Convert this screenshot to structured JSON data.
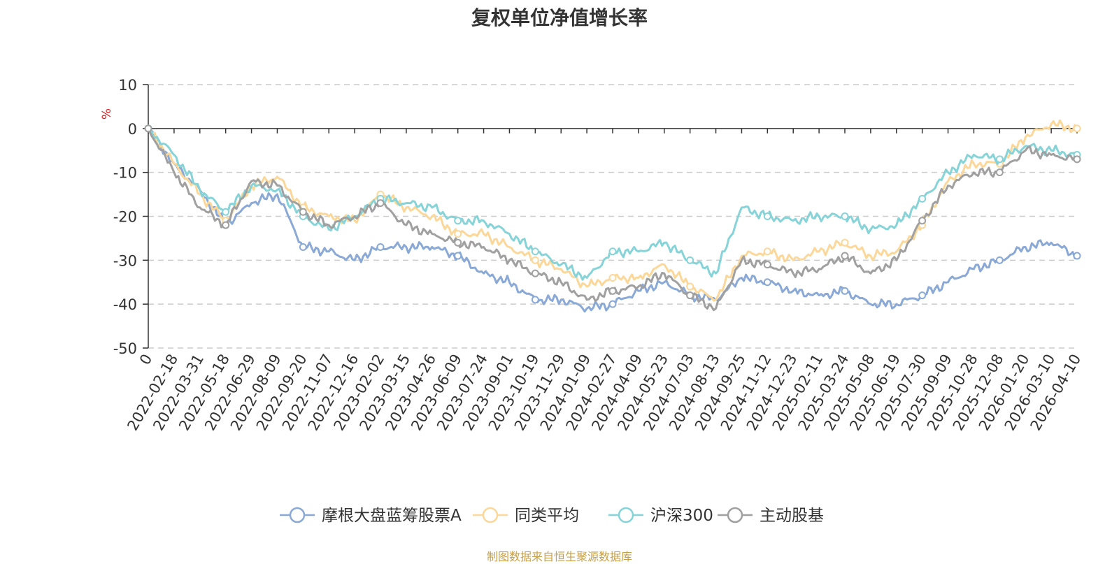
{
  "chart_data": {
    "type": "line",
    "title": "复权单位净值增长率",
    "ylabel": "%",
    "ylim": [
      -50,
      10
    ],
    "yticks": [
      10,
      0,
      -10,
      -20,
      -30,
      -40,
      -50
    ],
    "y_tick_labels": [
      "10",
      "0",
      "-10",
      "-20",
      "-30",
      "-40",
      "-50"
    ],
    "categories": [
      "0",
      "2022-02-18",
      "2022-03-31",
      "2022-05-18",
      "2022-06-29",
      "2022-08-09",
      "2022-09-20",
      "2022-11-07",
      "2022-12-16",
      "2023-02-02",
      "2023-03-15",
      "2023-04-26",
      "2023-06-09",
      "2023-07-24",
      "2023-09-01",
      "2023-10-19",
      "2023-11-29",
      "2024-01-09",
      "2024-02-27",
      "2024-04-09",
      "2024-05-23",
      "2024-07-03",
      "2024-08-13",
      "2024-09-25",
      "2024-11-12",
      "2024-12-23",
      "2025-02-11",
      "2025-03-24",
      "2025-05-08",
      "2025-06-19",
      "2025-07-30",
      "2025-09-09",
      "2025-10-28",
      "2025-12-08",
      "2026-01-20",
      "2026-03-10",
      "2026-04-10"
    ],
    "series": [
      {
        "name": "摩根大盘蓝筹股票A",
        "color": "#8aa9d6",
        "values": [
          0,
          -8,
          -14,
          -22,
          -17,
          -15,
          -27,
          -28,
          -30,
          -27,
          -27,
          -27,
          -29,
          -33,
          -35,
          -39,
          -39,
          -41,
          -40,
          -37,
          -35,
          -38,
          -39,
          -34,
          -35,
          -37,
          -38,
          -37,
          -40,
          -40,
          -38,
          -35,
          -32,
          -30,
          -27,
          -26,
          -29
        ]
      },
      {
        "name": "同类平均",
        "color": "#fbd89a",
        "values": [
          0,
          -8,
          -15,
          -21,
          -13,
          -11,
          -18,
          -20,
          -21,
          -15,
          -18,
          -20,
          -24,
          -24,
          -27,
          -30,
          -32,
          -36,
          -34,
          -34,
          -31,
          -36,
          -39,
          -29,
          -28,
          -30,
          -28,
          -26,
          -29,
          -28,
          -22,
          -12,
          -8,
          -8,
          -2,
          1,
          0
        ]
      },
      {
        "name": "沪深300",
        "color": "#86d3d8",
        "values": [
          0,
          -6,
          -14,
          -19,
          -13,
          -14,
          -20,
          -23,
          -20,
          -16,
          -17,
          -18,
          -21,
          -21,
          -24,
          -28,
          -31,
          -34,
          -28,
          -28,
          -26,
          -30,
          -33,
          -18,
          -20,
          -21,
          -20,
          -20,
          -23,
          -22,
          -16,
          -10,
          -6,
          -7,
          -4,
          -5,
          -6
        ]
      },
      {
        "name": "主动股基",
        "color": "#a0a0a0",
        "values": [
          0,
          -10,
          -18,
          -22,
          -12,
          -13,
          -19,
          -22,
          -20,
          -17,
          -22,
          -24,
          -26,
          -27,
          -30,
          -33,
          -35,
          -39,
          -37,
          -36,
          -33,
          -38,
          -41,
          -30,
          -31,
          -33,
          -32,
          -29,
          -33,
          -30,
          -21,
          -13,
          -10,
          -10,
          -5,
          -6,
          -7
        ]
      }
    ]
  },
  "footer": "制图数据来自恒生聚源数据库"
}
